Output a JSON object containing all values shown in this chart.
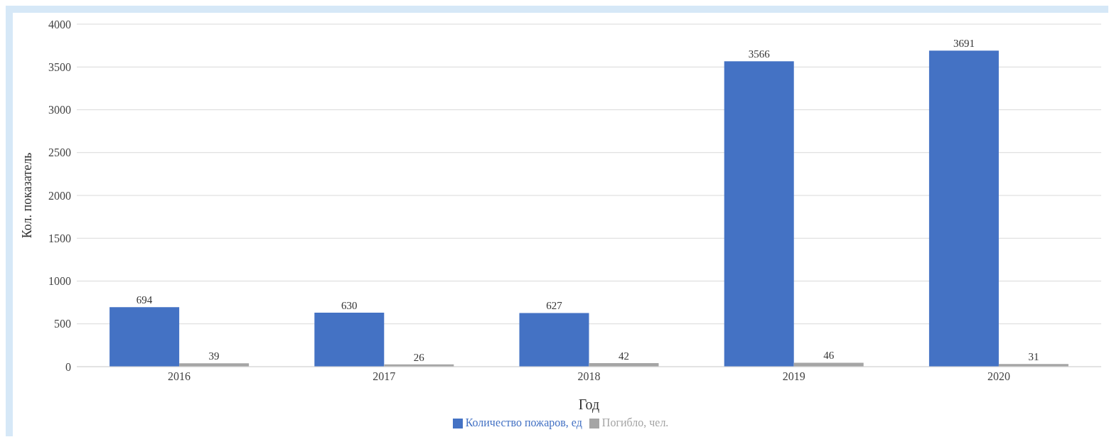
{
  "chart_data": {
    "type": "bar",
    "xlabel": "Год",
    "ylabel": "Кол. показатель",
    "categories": [
      "2016",
      "2017",
      "2018",
      "2019",
      "2020"
    ],
    "series": [
      {
        "name": "Количество пожаров, ед",
        "color": "#4472c4",
        "values": [
          694,
          630,
          627,
          3566,
          3691
        ]
      },
      {
        "name": "Погибло, чел.",
        "color": "#a5a5a5",
        "values": [
          39,
          26,
          42,
          46,
          31
        ]
      }
    ],
    "ylim": [
      0,
      4000
    ],
    "yticks": [
      0,
      500,
      1000,
      1500,
      2000,
      2500,
      3000,
      3500,
      4000
    ],
    "grid": "y",
    "legend": "bottom",
    "data_labels": true
  }
}
